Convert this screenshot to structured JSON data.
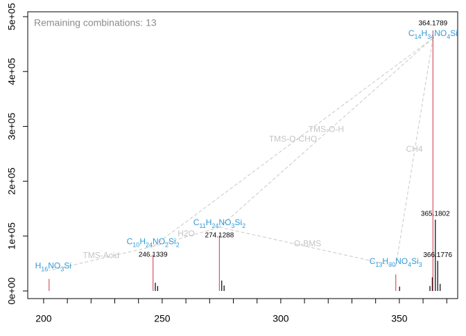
{
  "chart_data": {
    "type": "spectrum",
    "annotation": "Remaining combinations: 13",
    "xlim": [
      193.3,
      374.6
    ],
    "xticks": [
      200,
      250,
      300,
      350
    ],
    "xminorticks": [
      210,
      220,
      230,
      240,
      260,
      270,
      280,
      290,
      310,
      320,
      330,
      340,
      360,
      370
    ],
    "ylim": [
      -13900,
      508900
    ],
    "yticks": [
      {
        "value": 0,
        "label": "0e+00"
      },
      {
        "value": 100000,
        "label": "1e+05"
      },
      {
        "value": 200000,
        "label": "2e+05"
      },
      {
        "value": 300000,
        "label": "3e+05"
      },
      {
        "value": 400000,
        "label": "4e+05"
      },
      {
        "value": 500000,
        "label": "5e+05"
      }
    ],
    "peaks": {
      "color": "#000000",
      "x": [
        247.1,
        248.1,
        275.1,
        276.1,
        350.1,
        362.9,
        363.9,
        365.1802,
        366.1776,
        367.2
      ],
      "values": [
        15000,
        9000,
        19000,
        10000,
        8000,
        9000,
        25000,
        130000,
        55000,
        13000
      ]
    },
    "assigned": {
      "color": "#d9535f",
      "formula_color": "#2e9ad6",
      "x": [
        202.3,
        246.1339,
        274.1288,
        348.5,
        364.1789
      ],
      "values": [
        22000,
        66000,
        101000,
        30000,
        475000
      ],
      "formulas": [
        "H16NO3Si",
        "C10H24NO2Si2",
        "C11H24NO3Si2",
        "C13H30NO4Si3",
        "C14H34NO4Si"
      ]
    },
    "losses": [
      {
        "from": 4,
        "to": 2,
        "label": "TMS-O-H"
      },
      {
        "from": 4,
        "to": 1,
        "label": "TMS-O-CHO"
      },
      {
        "from": 4,
        "to": 3,
        "label": "CH4"
      },
      {
        "from": 2,
        "to": 3,
        "label": "O-BMS"
      },
      {
        "from": 1,
        "to": 0,
        "label": "TMS-Acid"
      },
      {
        "from": 2,
        "to": 1,
        "label": "H2O"
      }
    ]
  }
}
